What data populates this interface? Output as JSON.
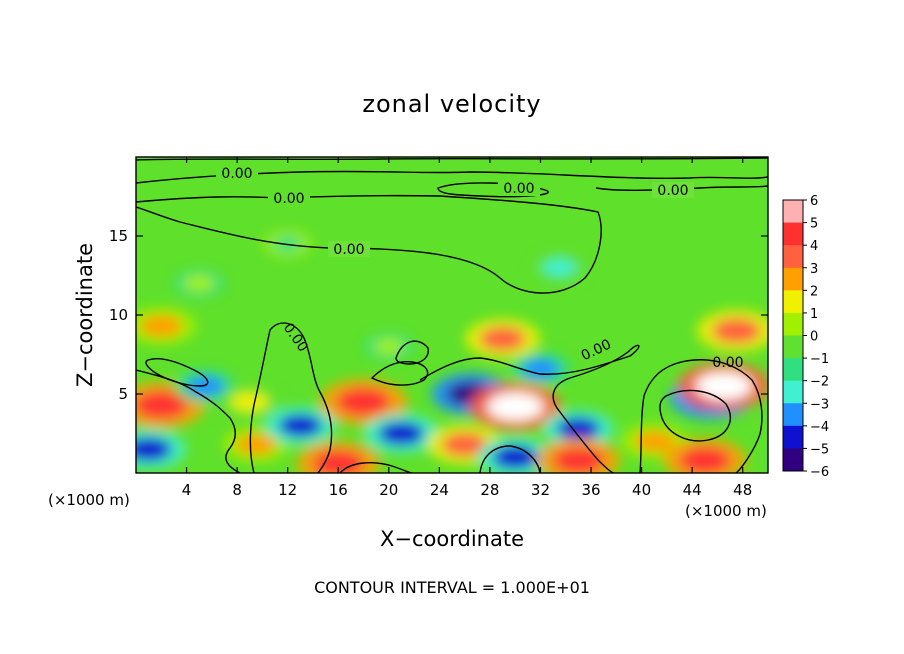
{
  "chart_data": {
    "type": "heatmap",
    "title": "zonal velocity",
    "xlabel": "X−coordinate",
    "ylabel": "Z−coordinate",
    "x_unit_left": "(×1000 m)",
    "x_unit_right": "(×1000 m)",
    "footer": "CONTOUR INTERVAL = 1.000E+01",
    "xlim": [
      0,
      50
    ],
    "ylim": [
      0,
      20
    ],
    "x_ticks": [
      4,
      8,
      12,
      16,
      20,
      24,
      28,
      32,
      36,
      40,
      44,
      48
    ],
    "x_tick_labels": [
      "4",
      "8",
      "12",
      "16",
      "20",
      "24",
      "28",
      "32",
      "36",
      "40",
      "44",
      "48"
    ],
    "y_ticks": [
      5,
      10,
      15
    ],
    "y_tick_labels": [
      "5",
      "10",
      "15"
    ],
    "colorbar": {
      "min": -6,
      "max": 6,
      "levels": [
        6,
        5,
        4,
        3,
        2,
        1,
        0,
        -1,
        -2,
        -3,
        -4,
        -5,
        -6
      ],
      "level_labels": [
        "6",
        "5",
        "4",
        "3",
        "2",
        "1",
        "0",
        "−1",
        "−2",
        "−3",
        "−4",
        "−5",
        "−6"
      ],
      "colors": [
        "#ffb0b0",
        "#ff3030",
        "#ff6040",
        "#ffa000",
        "#f0f000",
        "#a0f000",
        "#60e030",
        "#30e080",
        "#40f0d0",
        "#2090ff",
        "#1010d0",
        "#300080",
        "#7000a0"
      ]
    },
    "contour_labels": [
      "0.00",
      "0.00",
      "0.00",
      "0.00",
      "0.00",
      "0.00",
      "0.00",
      "0.00"
    ],
    "anomalies": [
      {
        "x": 2,
        "z": 4.3,
        "value": 5.5
      },
      {
        "x": 2,
        "z": 9.3,
        "value": 3.5
      },
      {
        "x": 5.5,
        "z": 5.5,
        "value": -2.5
      },
      {
        "x": 9,
        "z": 4.5,
        "value": 2.5
      },
      {
        "x": 1,
        "z": 1.5,
        "value": -4
      },
      {
        "x": 9.5,
        "z": 1.8,
        "value": 3
      },
      {
        "x": 13,
        "z": 3,
        "value": -3.5
      },
      {
        "x": 18,
        "z": 4.5,
        "value": 5.5
      },
      {
        "x": 16,
        "z": 0.6,
        "value": 5
      },
      {
        "x": 21,
        "z": 2.5,
        "value": -4
      },
      {
        "x": 26.5,
        "z": 5,
        "value": -4.5
      },
      {
        "x": 26,
        "z": 1.8,
        "value": 4
      },
      {
        "x": 29,
        "z": 8.5,
        "value": 4
      },
      {
        "x": 30,
        "z": 4.2,
        "value": 6
      },
      {
        "x": 30,
        "z": 1,
        "value": -4
      },
      {
        "x": 35,
        "z": 2.8,
        "value": -3.5
      },
      {
        "x": 35,
        "z": 0.8,
        "value": 5
      },
      {
        "x": 32,
        "z": 6.6,
        "value": -2.5
      },
      {
        "x": 41,
        "z": 2,
        "value": 3
      },
      {
        "x": 45.5,
        "z": 4.8,
        "value": -5
      },
      {
        "x": 46.5,
        "z": 5.5,
        "value": 6
      },
      {
        "x": 47.5,
        "z": 9,
        "value": 4.5
      },
      {
        "x": 45,
        "z": 0.8,
        "value": 5
      },
      {
        "x": 33.5,
        "z": 13,
        "value": -1.8
      },
      {
        "x": 12,
        "z": 14.5,
        "value": -0.8
      },
      {
        "x": 20,
        "z": 8,
        "value": 1
      },
      {
        "x": 5,
        "z": 12,
        "value": 1.2
      }
    ]
  }
}
